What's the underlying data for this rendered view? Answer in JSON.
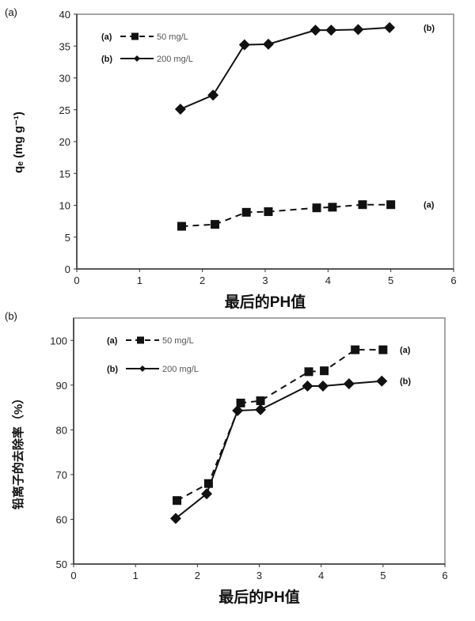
{
  "chart_data": [
    {
      "type": "line",
      "panel_label": "(a)",
      "xlabel": "最后的PH值",
      "ylabel": "qₑ (mg g⁻¹)",
      "xlim": [
        0,
        6
      ],
      "ylim": [
        0,
        40
      ],
      "xticks": [
        0,
        1,
        2,
        3,
        4,
        5,
        6
      ],
      "yticks": [
        0,
        5,
        10,
        15,
        20,
        25,
        30,
        35,
        40
      ],
      "grid": false,
      "legend": "top-left",
      "series": [
        {
          "name": "50 mg/L",
          "tag": "(a)",
          "style": "dashed",
          "marker": "square",
          "x": [
            1.67,
            2.2,
            2.7,
            3.05,
            3.82,
            4.07,
            4.55,
            5.0
          ],
          "y": [
            6.7,
            7.0,
            8.9,
            9.0,
            9.6,
            9.7,
            10.1,
            10.1
          ]
        },
        {
          "name": "200 mg/L",
          "tag": "(b)",
          "style": "solid",
          "marker": "diamond",
          "x": [
            1.65,
            2.17,
            2.67,
            3.05,
            3.8,
            4.05,
            4.48,
            4.98
          ],
          "y": [
            25.1,
            27.3,
            35.2,
            35.3,
            37.5,
            37.5,
            37.6,
            37.9
          ]
        }
      ]
    },
    {
      "type": "line",
      "panel_label": "(b)",
      "xlabel": "最后的PH值",
      "ylabel": "铅离子的去除率（%）",
      "xlim": [
        0,
        6
      ],
      "ylim": [
        50,
        105
      ],
      "xticks": [
        0,
        1,
        2,
        3,
        4,
        5,
        6
      ],
      "yticks": [
        50,
        60,
        70,
        80,
        90,
        100
      ],
      "grid": false,
      "legend": "top-left",
      "series": [
        {
          "name": "50 mg/L",
          "tag": "(a)",
          "style": "dashed",
          "marker": "square",
          "x": [
            1.67,
            2.18,
            2.7,
            3.02,
            3.8,
            4.05,
            4.55,
            5.0
          ],
          "y": [
            64.2,
            68.0,
            86.0,
            86.5,
            93.0,
            93.2,
            97.9,
            97.9
          ]
        },
        {
          "name": "200 mg/L",
          "tag": "(b)",
          "style": "solid",
          "marker": "diamond",
          "x": [
            1.65,
            2.15,
            2.65,
            3.02,
            3.78,
            4.03,
            4.45,
            4.98
          ],
          "y": [
            60.2,
            65.7,
            84.3,
            84.5,
            89.8,
            89.8,
            90.3,
            90.9
          ]
        }
      ]
    }
  ]
}
